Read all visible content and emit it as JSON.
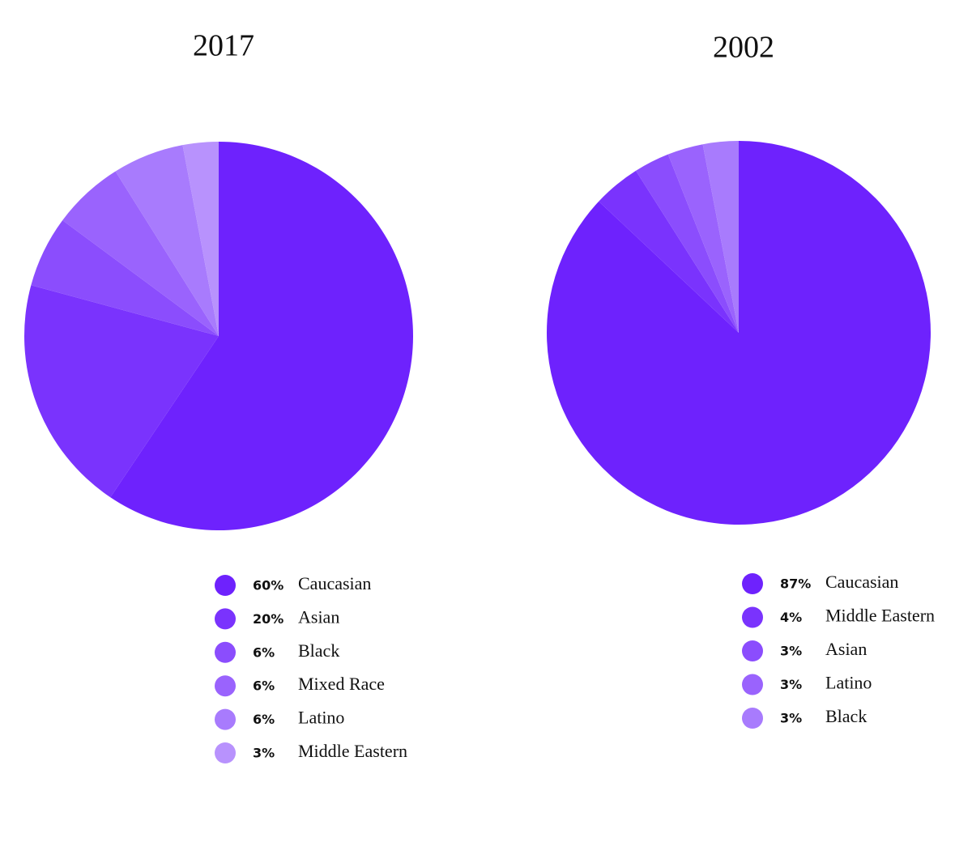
{
  "chart_data": [
    {
      "type": "pie",
      "title": "2017",
      "categories": [
        "Caucasian",
        "Asian",
        "Black",
        "Mixed Race",
        "Latino",
        "Middle Eastern"
      ],
      "values": [
        60,
        20,
        6,
        6,
        6,
        3
      ],
      "value_labels": [
        "60%",
        "20%",
        "6%",
        "6%",
        "6%",
        "3%"
      ],
      "colors": [
        "#6e22fd",
        "#7a33fd",
        "#8b4dfd",
        "#9a63fd",
        "#a87bfd",
        "#b892fd"
      ]
    },
    {
      "type": "pie",
      "title": "2002",
      "categories": [
        "Caucasian",
        "Middle Eastern",
        "Asian",
        "Latino",
        "Black"
      ],
      "values": [
        87,
        4,
        3,
        3,
        3
      ],
      "value_labels": [
        "87%",
        "4%",
        "3%",
        "3%",
        "3%"
      ],
      "colors": [
        "#6e22fd",
        "#7a33fd",
        "#8b4dfd",
        "#9a63fd",
        "#a87bfd"
      ]
    }
  ]
}
